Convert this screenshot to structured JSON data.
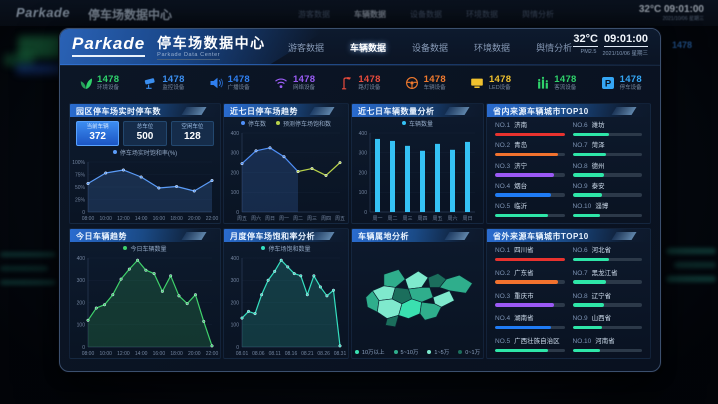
{
  "window": {
    "brand": "Parkade",
    "title": "停车场数据中心",
    "subtitle": "Parkade Data Center",
    "nav": [
      {
        "label": "游客数据",
        "active": false
      },
      {
        "label": "车辆数据",
        "active": true
      },
      {
        "label": "设备数据",
        "active": false
      },
      {
        "label": "环境数据",
        "active": false
      },
      {
        "label": "舆情分析",
        "active": false
      }
    ],
    "weather": {
      "temp": "32°C",
      "time": "09:01:00",
      "pm": "PM2.5",
      "date": "2021/10/06 星期三"
    }
  },
  "stats": [
    {
      "icon": "leaf-icon",
      "value": "1478",
      "label": "环境设备",
      "color": "#2fd26b"
    },
    {
      "icon": "camera-icon",
      "value": "1478",
      "label": "监控设备",
      "color": "#3a8ef0"
    },
    {
      "icon": "speaker-icon",
      "value": "1478",
      "label": "广播设备",
      "color": "#2f7ff0"
    },
    {
      "icon": "wifi-icon",
      "value": "1478",
      "label": "网络设备",
      "color": "#9a5cf5"
    },
    {
      "icon": "streetlamp-icon",
      "value": "1478",
      "label": "路灯设备",
      "color": "#e84b3c"
    },
    {
      "icon": "steering-wheel-icon",
      "value": "1478",
      "label": "车辆设备",
      "color": "#f07a2e"
    },
    {
      "icon": "led-screen-icon",
      "value": "1478",
      "label": "LED设备",
      "color": "#f0c12e"
    },
    {
      "icon": "people-flow-icon",
      "value": "1478",
      "label": "客流设备",
      "color": "#2fd26b"
    },
    {
      "icon": "parking-icon",
      "value": "1478",
      "label": "停车设备",
      "color": "#35a6f5"
    }
  ],
  "panels": {
    "p1_title": "园区停车场实时停车数",
    "p2_title": "近七日停车场趋势",
    "p3_title": "近七日车辆数量分析",
    "p4_title": "省内来源车辆城市TOP10",
    "p5_title": "今日车辆趋势",
    "p6_title": "月度停车场饱和率分析",
    "p7_title": "车辆属地分析",
    "p8_title": "省外来源车辆城市TOP10"
  },
  "realtime_boxes": [
    {
      "label": "当前车辆",
      "value": "372",
      "highlight": true
    },
    {
      "label": "总车位",
      "value": "500",
      "highlight": false
    },
    {
      "label": "空闲车位",
      "value": "128",
      "highlight": false
    }
  ],
  "chart_data": {
    "saturation": {
      "type": "line",
      "x_labels": [
        "08:00",
        "10:00",
        "12:00",
        "14:00",
        "16:00",
        "18:00",
        "20:00",
        "22:00"
      ],
      "y_ticks": [
        "0",
        "25%",
        "50%",
        "75%",
        "100%"
      ],
      "y_max": 100,
      "legend": [
        {
          "label": "停车场实时饱和率(%)",
          "color": "#5b9cf8"
        }
      ],
      "series": [
        {
          "name": "停车场实时饱和率",
          "color": "#5b9cf8",
          "fill": true,
          "values": [
            57,
            78,
            84,
            70,
            48,
            51,
            42,
            63
          ]
        }
      ]
    },
    "weekly": {
      "type": "line",
      "x_labels": [
        "周五",
        "周六",
        "周日",
        "周一",
        "周二",
        "周三",
        "周四",
        "周五"
      ],
      "y_ticks": [
        "0",
        "100",
        "200",
        "300",
        "400"
      ],
      "y_max": 400,
      "legend": [
        {
          "label": "停车数",
          "color": "#4f8ff7"
        },
        {
          "label": "预测停车场饱和数",
          "color": "#b8d34a"
        }
      ],
      "series": [
        {
          "name": "停车数",
          "color": "#4f8ff7",
          "fill": true,
          "values": [
            245,
            310,
            325,
            280,
            205,
            null,
            null,
            null
          ]
        },
        {
          "name": "预测停车场饱和数",
          "color": "#b8d34a",
          "fill": false,
          "values": [
            null,
            null,
            null,
            null,
            205,
            220,
            185,
            250
          ]
        }
      ]
    },
    "weekly_bars": {
      "type": "bar",
      "x_labels": [
        "周一",
        "周二",
        "周三",
        "周四",
        "周五",
        "周六",
        "周日"
      ],
      "y_ticks": [
        "0",
        "100",
        "200",
        "300",
        "400"
      ],
      "y_max": 400,
      "legend": [
        {
          "label": "车辆数量",
          "color": "#35c2f5"
        }
      ],
      "series": [
        {
          "name": "车辆数量",
          "color": "#35c2f5",
          "values": [
            370,
            360,
            335,
            310,
            345,
            315,
            355
          ]
        }
      ]
    },
    "today": {
      "type": "area",
      "x_labels": [
        "08:00",
        "10:00",
        "12:00",
        "14:00",
        "16:00",
        "18:00",
        "20:00",
        "22:00"
      ],
      "y_ticks": [
        "0",
        "100",
        "200",
        "300",
        "400"
      ],
      "y_max": 400,
      "legend": [
        {
          "label": "今日车辆数量",
          "color": "#3fd26b"
        }
      ],
      "series": [
        {
          "name": "今日车辆数量",
          "color": "#3fd26b",
          "fill": true,
          "values": [
            120,
            175,
            190,
            235,
            305,
            350,
            390,
            345,
            330,
            250,
            320,
            230,
            195,
            235,
            115,
            5
          ]
        }
      ]
    },
    "monthly": {
      "type": "area",
      "x_labels": [
        "08.01",
        "08.06",
        "08.11",
        "08.16",
        "08.21",
        "08.26",
        "08.31"
      ],
      "y_ticks": [
        "0",
        "100",
        "200",
        "300",
        "400"
      ],
      "y_max": 400,
      "legend": [
        {
          "label": "停车场饱和数量",
          "color": "#35e0c0"
        }
      ],
      "series": [
        {
          "name": "停车场饱和数量",
          "color": "#35e0c0",
          "fill": true,
          "values": [
            130,
            160,
            150,
            235,
            300,
            340,
            390,
            360,
            330,
            320,
            235,
            320,
            270,
            230,
            255,
            5
          ]
        }
      ]
    }
  },
  "top10_in": [
    {
      "rank": "NO.1",
      "name": "济南",
      "pct": 100,
      "color": "#e8322e"
    },
    {
      "rank": "NO.2",
      "name": "青岛",
      "pct": 90,
      "color": "#f2722e"
    },
    {
      "rank": "NO.3",
      "name": "济宁",
      "pct": 85,
      "color": "#9b59f5"
    },
    {
      "rank": "NO.4",
      "name": "烟台",
      "pct": 80,
      "color": "#1f7bf4"
    },
    {
      "rank": "NO.5",
      "name": "临沂",
      "pct": 76,
      "color": "#2ee6a8"
    },
    {
      "rank": "NO.6",
      "name": "潍坊",
      "pct": 52,
      "color": "#2ee6a8"
    },
    {
      "rank": "NO.7",
      "name": "菏泽",
      "pct": 48,
      "color": "#2ee6a8"
    },
    {
      "rank": "NO.8",
      "name": "德州",
      "pct": 45,
      "color": "#2ee6a8"
    },
    {
      "rank": "NO.9",
      "name": "泰安",
      "pct": 42,
      "color": "#2ee6a8"
    },
    {
      "rank": "NO.10",
      "name": "淄博",
      "pct": 40,
      "color": "#2ee6a8"
    }
  ],
  "top10_out": [
    {
      "rank": "NO.1",
      "name": "四川省",
      "pct": 100,
      "color": "#e8322e"
    },
    {
      "rank": "NO.2",
      "name": "广东省",
      "pct": 90,
      "color": "#f2722e"
    },
    {
      "rank": "NO.3",
      "name": "重庆市",
      "pct": 85,
      "color": "#9b59f5"
    },
    {
      "rank": "NO.4",
      "name": "湖南省",
      "pct": 80,
      "color": "#1f7bf4"
    },
    {
      "rank": "NO.5",
      "name": "广西壮族自治区",
      "pct": 76,
      "color": "#2ee6a8"
    },
    {
      "rank": "NO.6",
      "name": "河北省",
      "pct": 52,
      "color": "#2ee6a8"
    },
    {
      "rank": "NO.7",
      "name": "黑龙江省",
      "pct": 48,
      "color": "#2ee6a8"
    },
    {
      "rank": "NO.8",
      "name": "辽宁省",
      "pct": 45,
      "color": "#2ee6a8"
    },
    {
      "rank": "NO.9",
      "name": "山西省",
      "pct": 42,
      "color": "#2ee6a8"
    },
    {
      "rank": "NO.10",
      "name": "河南省",
      "pct": 40,
      "color": "#2ee6a8"
    }
  ],
  "map": {
    "legend": [
      {
        "label": "10万以上",
        "color": "#3ae0b0"
      },
      {
        "label": "5~10万",
        "color": "#2fae8c"
      },
      {
        "label": "1~5万",
        "color": "#7fe9cd"
      },
      {
        "label": "0~1万",
        "color": "#1b6e5c"
      }
    ]
  },
  "colors": {
    "accent_blue": "#2f6fce",
    "bar_cyan": "#35c2f5",
    "teal": "#35e0c0",
    "green": "#3fd26b"
  }
}
